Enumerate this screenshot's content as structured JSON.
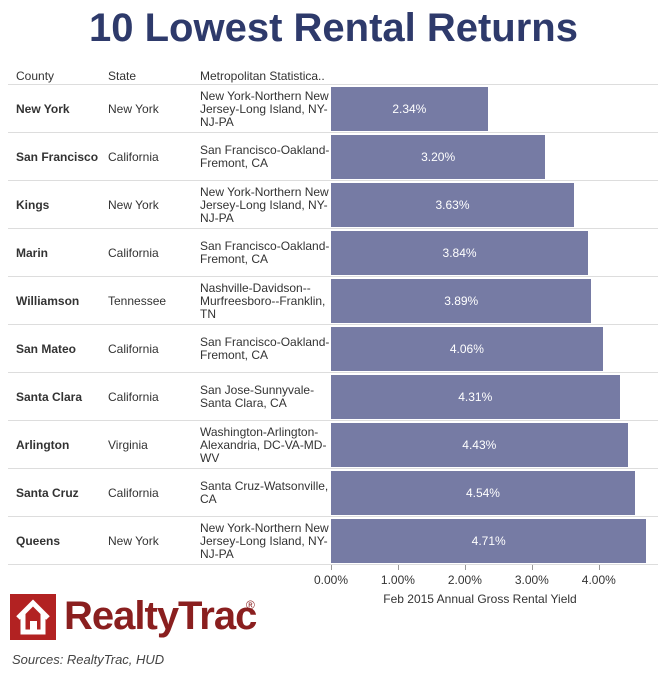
{
  "chart_data": {
    "type": "bar",
    "orientation": "horizontal",
    "title": "10 Lowest Rental Returns",
    "columns": [
      "County",
      "State",
      "Metropolitan Statistica.."
    ],
    "categories": [
      "New York",
      "San Francisco",
      "Kings",
      "Marin",
      "Williamson",
      "San Mateo",
      "Santa Clara",
      "Arlington",
      "Santa Cruz",
      "Queens"
    ],
    "state": [
      "New York",
      "California",
      "New York",
      "California",
      "Tennessee",
      "California",
      "California",
      "Virginia",
      "California",
      "New York"
    ],
    "metro": [
      "New York-Northern New Jersey-Long Island, NY-NJ-PA",
      "San Francisco-Oakland-Fremont, CA",
      "New York-Northern New Jersey-Long Island, NY-NJ-PA",
      "San Francisco-Oakland-Fremont, CA",
      "Nashville-Davidson--Murfreesboro--Franklin, TN",
      "San Francisco-Oakland-Fremont, CA",
      "San Jose-Sunnyvale-Santa Clara, CA",
      "Washington-Arlington-Alexandria, DC-VA-MD-WV",
      "Santa Cruz-Watsonville, CA",
      "New York-Northern New Jersey-Long Island, NY-NJ-PA"
    ],
    "values": [
      2.34,
      3.2,
      3.63,
      3.84,
      3.89,
      4.06,
      4.31,
      4.43,
      4.54,
      4.71
    ],
    "value_labels": [
      "2.34%",
      "3.20%",
      "3.63%",
      "3.84%",
      "3.89%",
      "4.06%",
      "4.31%",
      "4.43%",
      "4.54%",
      "4.71%"
    ],
    "color": "#767ba4",
    "xlim": [
      0,
      4.75
    ],
    "xticks": [
      {
        "value": 0,
        "label": "0.00%"
      },
      {
        "value": 1,
        "label": "1.00%"
      },
      {
        "value": 2,
        "label": "2.00%"
      },
      {
        "value": 3,
        "label": "3.00%"
      },
      {
        "value": 4,
        "label": "4.00%"
      }
    ],
    "xlabel": "Feb 2015 Annual Gross Rental Yield",
    "logo": "RealtyTrac",
    "logo_mark": "®",
    "source": "Sources: RealtyTrac, HUD"
  }
}
